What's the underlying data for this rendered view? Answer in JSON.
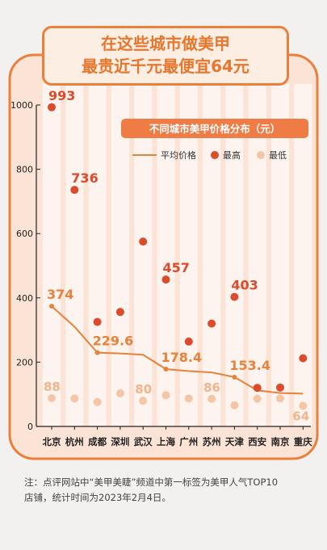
{
  "header": {
    "title_line1": "在这些城市做美甲",
    "title_line2": "最贵近千元最便宜64元"
  },
  "chart_data": {
    "type": "line",
    "title": "不同城市美甲价格分布（元）",
    "categories": [
      "北京",
      "杭州",
      "成都",
      "深圳",
      "武汉",
      "上海",
      "广州",
      "苏州",
      "天津",
      "西安",
      "南京",
      "重庆"
    ],
    "ylim": [
      0,
      1000
    ],
    "yticks": [
      0,
      200,
      400,
      600,
      800,
      1000
    ],
    "grid": false,
    "legend_position": "top-right",
    "series": [
      {
        "name": "平均价格",
        "kind": "line",
        "color": "#e8823a",
        "values": [
          374,
          310,
          229.6,
          227,
          223,
          178.4,
          172,
          168,
          153.4,
          112,
          104,
          102
        ]
      },
      {
        "name": "最高",
        "kind": "scatter",
        "color": "#dc4b2b",
        "values": [
          993,
          736,
          325,
          356,
          575,
          457,
          264,
          320,
          403,
          120,
          121,
          212
        ]
      },
      {
        "name": "最低",
        "kind": "scatter",
        "color": "#f5c6a5",
        "values": [
          88,
          87,
          76,
          103,
          80,
          97,
          87,
          86,
          66,
          86,
          87,
          64
        ]
      }
    ],
    "annotations": [
      {
        "label": "993",
        "series": "最高",
        "index": 0
      },
      {
        "label": "736",
        "series": "最高",
        "index": 1
      },
      {
        "label": "457",
        "series": "最高",
        "index": 5
      },
      {
        "label": "403",
        "series": "最高",
        "index": 8
      },
      {
        "label": "374",
        "series": "平均价格",
        "index": 0
      },
      {
        "label": "229.6",
        "series": "平均价格",
        "index": 2
      },
      {
        "label": "178.4",
        "series": "平均价格",
        "index": 5
      },
      {
        "label": "153.4",
        "series": "平均价格",
        "index": 8
      },
      {
        "label": "88",
        "series": "最低",
        "index": 0
      },
      {
        "label": "80",
        "series": "最低",
        "index": 4
      },
      {
        "label": "86",
        "series": "最低",
        "index": 7
      },
      {
        "label": "64",
        "series": "最低",
        "index": 11
      }
    ],
    "colors": {
      "panel": "#fbe3d6",
      "border": "#ec7f3a",
      "header_bg": "#f07c45",
      "label_max": "#dc4b2b",
      "label_avg": "#e8823a",
      "label_min": "#f3b48c"
    }
  },
  "footnote": {
    "line1": "注：点评网站中“美甲美睫”频道中第一标签为美甲人气TOP10",
    "line2": "店铺，统计时间为2023年2月4日。"
  }
}
